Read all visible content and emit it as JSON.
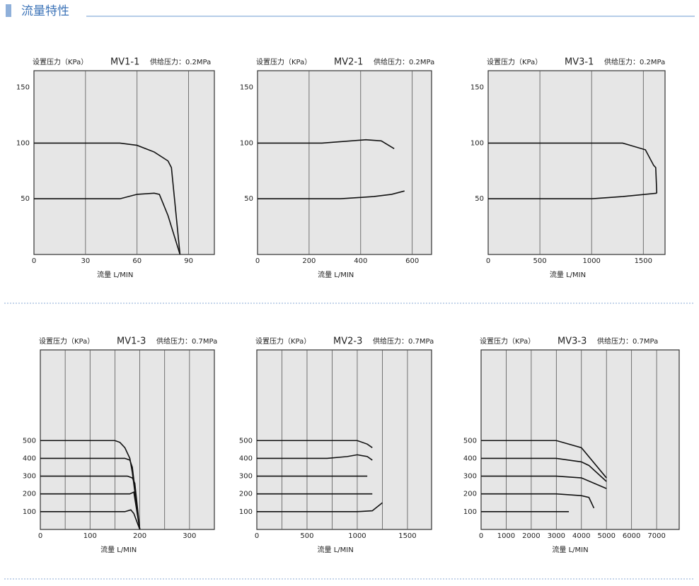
{
  "header": {
    "title": "流量特性"
  },
  "chart_data": [
    {
      "type": "line",
      "title": "MV1-1",
      "subtitle": "供给压力：0.2MPa",
      "ylabel": "设置压力（KPa）",
      "xlabel": "流量 L/MIN",
      "xlim": [
        0,
        105
      ],
      "ylim": [
        0,
        165
      ],
      "xticks": [
        0,
        30,
        60,
        90
      ],
      "yticks": [
        50,
        100,
        150
      ],
      "xgrid": [
        30,
        60,
        90
      ],
      "fill": "#e6e6e6",
      "series": [
        {
          "color": "#111111",
          "x": [
            0,
            50,
            60,
            70,
            78,
            80,
            85
          ],
          "values": [
            100,
            100,
            98,
            92,
            84,
            78,
            0
          ]
        },
        {
          "color": "#111111",
          "x": [
            0,
            50,
            60,
            70,
            73,
            78,
            85
          ],
          "values": [
            50,
            50,
            54,
            55,
            54,
            35,
            0
          ]
        }
      ]
    },
    {
      "type": "line",
      "title": "MV2-1",
      "subtitle": "供给压力：0.2MPa",
      "ylabel": "设置压力（KPa）",
      "xlabel": "流量 L/MIN",
      "xlim": [
        0,
        675
      ],
      "ylim": [
        0,
        165
      ],
      "xticks": [
        0,
        200,
        400,
        600
      ],
      "yticks": [
        50,
        100,
        150
      ],
      "xgrid": [
        200,
        400,
        600
      ],
      "fill": "#e6e6e6",
      "series": [
        {
          "color": "#111111",
          "x": [
            0,
            250,
            420,
            480,
            530
          ],
          "values": [
            100,
            100,
            103,
            102,
            95
          ]
        },
        {
          "color": "#111111",
          "x": [
            0,
            320,
            450,
            520,
            570
          ],
          "values": [
            50,
            50,
            52,
            54,
            57
          ]
        }
      ]
    },
    {
      "type": "line",
      "title": "MV3-1",
      "subtitle": "供给压力：0.2MPa",
      "ylabel": "设置压力（KPa）",
      "xlabel": "流量 L/MIN",
      "xlim": [
        0,
        1710
      ],
      "ylim": [
        0,
        165
      ],
      "xticks": [
        0,
        500,
        1000,
        1500
      ],
      "yticks": [
        50,
        100,
        150
      ],
      "xgrid": [
        500,
        1000,
        1500
      ],
      "fill": "#e6e6e6",
      "series": [
        {
          "color": "#111111",
          "x": [
            0,
            1300,
            1520,
            1600,
            1620,
            1630
          ],
          "values": [
            100,
            100,
            94,
            80,
            78,
            55
          ]
        },
        {
          "color": "#111111",
          "x": [
            0,
            1000,
            1300,
            1630
          ],
          "values": [
            50,
            50,
            52,
            55
          ]
        }
      ]
    },
    {
      "type": "line",
      "title": "MV1-3",
      "subtitle": "供给压力：0.7MPa",
      "ylabel": "设置压力（KPa）",
      "xlabel": "流量 L/MIN",
      "xlim": [
        0,
        350
      ],
      "ylim": [
        0,
        1010
      ],
      "xticks": [
        0,
        100,
        200,
        300
      ],
      "yticks": [
        100,
        200,
        300,
        400,
        500
      ],
      "xgrid": [
        50,
        100,
        150,
        200,
        250,
        300
      ],
      "fill": "#e6e6e6",
      "series": [
        {
          "color": "#111111",
          "x": [
            0,
            150,
            160,
            170,
            180,
            185,
            200
          ],
          "values": [
            500,
            500,
            490,
            460,
            400,
            320,
            0
          ]
        },
        {
          "color": "#111111",
          "x": [
            0,
            170,
            180,
            185,
            200
          ],
          "values": [
            400,
            400,
            390,
            350,
            0
          ]
        },
        {
          "color": "#111111",
          "x": [
            0,
            175,
            185,
            190,
            200
          ],
          "values": [
            300,
            300,
            290,
            260,
            0
          ]
        },
        {
          "color": "#111111",
          "x": [
            0,
            180,
            188,
            200
          ],
          "values": [
            200,
            200,
            210,
            0
          ]
        },
        {
          "color": "#111111",
          "x": [
            0,
            170,
            182,
            188,
            200
          ],
          "values": [
            100,
            100,
            110,
            90,
            0
          ]
        }
      ]
    },
    {
      "type": "line",
      "title": "MV2-3",
      "subtitle": "供给压力：0.7MPa",
      "ylabel": "设置压力（KPa）",
      "xlabel": "流量 L/MIN",
      "xlim": [
        0,
        1740
      ],
      "ylim": [
        0,
        1010
      ],
      "xticks": [
        0,
        500,
        1000,
        1500
      ],
      "yticks": [
        100,
        200,
        300,
        400,
        500
      ],
      "xgrid": [
        250,
        500,
        750,
        1000,
        1250,
        1500
      ],
      "fill": "#e6e6e6",
      "series": [
        {
          "color": "#111111",
          "x": [
            0,
            1000,
            1100,
            1150
          ],
          "values": [
            500,
            500,
            480,
            460
          ]
        },
        {
          "color": "#111111",
          "x": [
            0,
            700,
            900,
            1000,
            1100,
            1150
          ],
          "values": [
            400,
            400,
            410,
            420,
            410,
            390
          ]
        },
        {
          "color": "#111111",
          "x": [
            0,
            1100
          ],
          "values": [
            300,
            300
          ]
        },
        {
          "color": "#111111",
          "x": [
            0,
            1150
          ],
          "values": [
            200,
            200
          ]
        },
        {
          "color": "#111111",
          "x": [
            0,
            1000,
            1150,
            1250
          ],
          "values": [
            100,
            100,
            105,
            150
          ]
        }
      ]
    },
    {
      "type": "line",
      "title": "MV3-3",
      "subtitle": "供给压力：0.7MPa",
      "ylabel": "设置压力（KPa）",
      "xlabel": "流量 L/MIN",
      "xlim": [
        0,
        7900
      ],
      "ylim": [
        0,
        1010
      ],
      "xticks": [
        0,
        1000,
        2000,
        3000,
        4000,
        5000,
        6000,
        7000
      ],
      "yticks": [
        100,
        200,
        300,
        400,
        500
      ],
      "xgrid": [
        1000,
        2000,
        3000,
        4000,
        5000,
        6000,
        7000
      ],
      "fill": "#e6e6e6",
      "series": [
        {
          "color": "#111111",
          "x": [
            0,
            3000,
            4000,
            5000
          ],
          "values": [
            500,
            500,
            460,
            290
          ]
        },
        {
          "color": "#111111",
          "x": [
            0,
            3000,
            4000,
            4300,
            5000
          ],
          "values": [
            400,
            400,
            380,
            360,
            270
          ]
        },
        {
          "color": "#111111",
          "x": [
            0,
            3000,
            4000,
            5000
          ],
          "values": [
            300,
            300,
            290,
            230
          ]
        },
        {
          "color": "#111111",
          "x": [
            0,
            3000,
            4000,
            4300,
            4500
          ],
          "values": [
            200,
            200,
            190,
            180,
            120
          ]
        },
        {
          "color": "#111111",
          "x": [
            0,
            3500
          ],
          "values": [
            100,
            100
          ]
        }
      ]
    }
  ]
}
